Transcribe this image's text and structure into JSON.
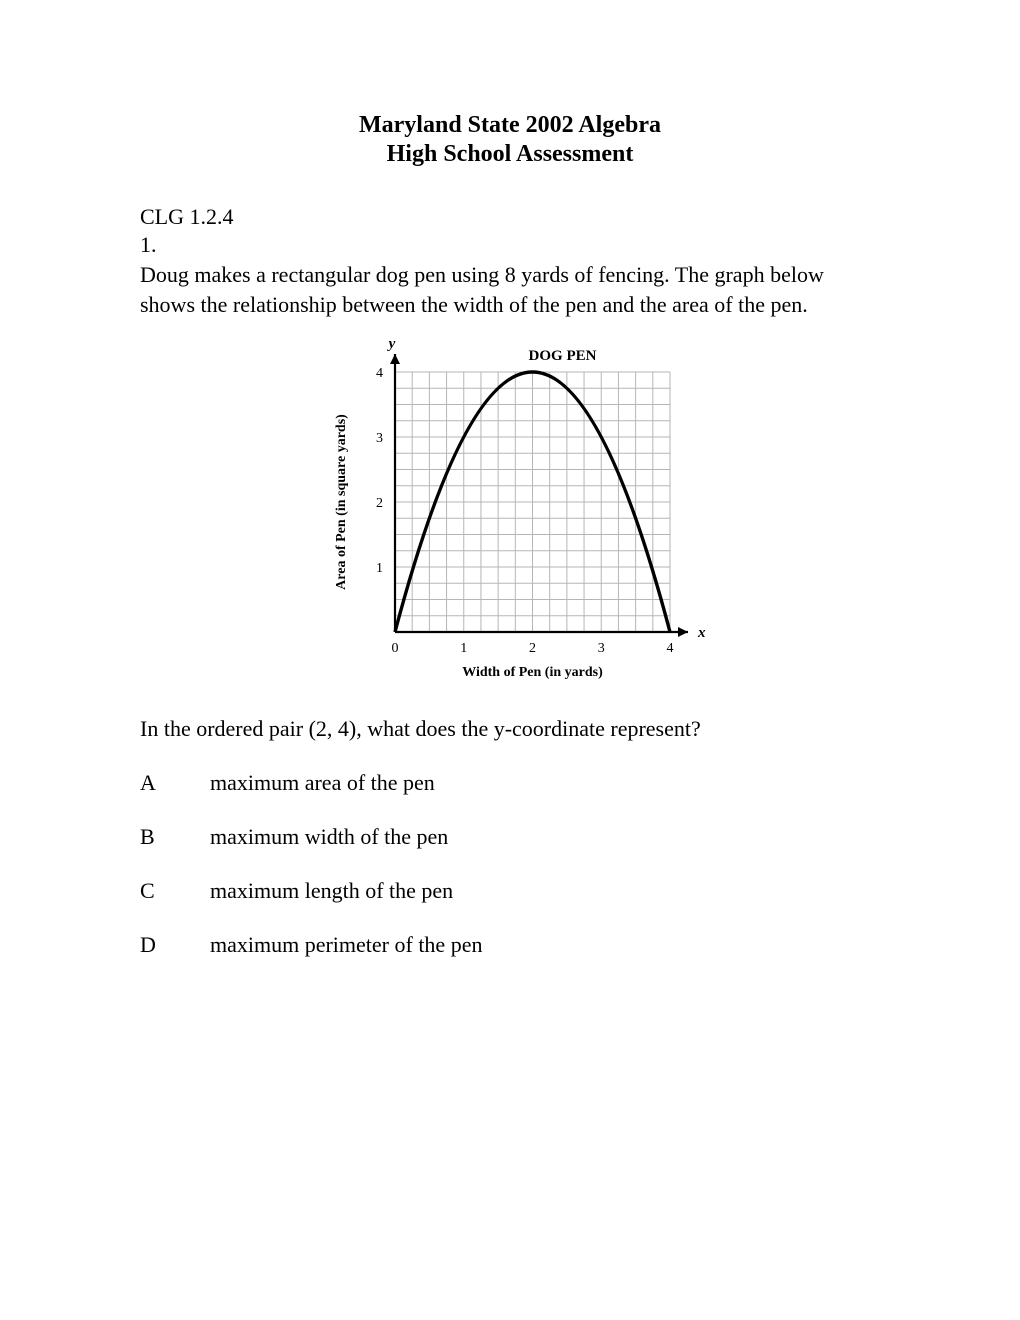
{
  "header": {
    "line1": "Maryland State 2002 Algebra",
    "line2": "High School Assessment"
  },
  "clg": "CLG 1.2.4",
  "question_number": "1.",
  "problem_text": "Doug makes a rectangular dog pen using 8 yards of fencing. The graph below shows the relationship between the width of the pen and the area of the pen.",
  "question_text": "In the ordered pair (2, 4), what does the y-coordinate represent?",
  "choices": [
    {
      "letter": "A",
      "text": "maximum area of the pen"
    },
    {
      "letter": "B",
      "text": "maximum width of the pen"
    },
    {
      "letter": "C",
      "text": "maximum length of the pen"
    },
    {
      "letter": "D",
      "text": "maximum perimeter of the pen"
    }
  ],
  "chart": {
    "type": "line",
    "title": "DOG PEN",
    "title_fontsize": 15,
    "x_label": "Width of Pen (in yards)",
    "y_label": "Area of Pen (in square yards)",
    "axis_label_fontsize": 14,
    "x_axis_var": "x",
    "y_axis_var": "y",
    "xlim": [
      0,
      4
    ],
    "ylim": [
      0,
      4
    ],
    "x_tick_step_minor": 0.25,
    "y_tick_step_minor": 0.25,
    "x_tick_labels": [
      0,
      1,
      2,
      3,
      4
    ],
    "y_tick_labels": [
      1,
      2,
      3,
      4
    ],
    "tick_label_fontsize": 14,
    "grid_color": "#b5b5b5",
    "grid_stroke": 1,
    "axis_color": "#000000",
    "axis_stroke": 2.2,
    "curve_color": "#000000",
    "curve_stroke": 3.4,
    "background_color": "#ffffff",
    "curve_points": [
      {
        "x": 0.0,
        "y": 0.0
      },
      {
        "x": 0.2,
        "y": 0.72
      },
      {
        "x": 0.4,
        "y": 1.28
      },
      {
        "x": 0.6,
        "y": 1.76
      },
      {
        "x": 0.8,
        "y": 2.56
      },
      {
        "x": 1.0,
        "y": 3.0
      },
      {
        "x": 1.2,
        "y": 3.36
      },
      {
        "x": 1.4,
        "y": 3.64
      },
      {
        "x": 1.6,
        "y": 3.84
      },
      {
        "x": 1.8,
        "y": 3.96
      },
      {
        "x": 2.0,
        "y": 4.0
      },
      {
        "x": 2.2,
        "y": 3.96
      },
      {
        "x": 2.4,
        "y": 3.84
      },
      {
        "x": 2.6,
        "y": 3.64
      },
      {
        "x": 2.8,
        "y": 3.36
      },
      {
        "x": 3.0,
        "y": 3.0
      },
      {
        "x": 3.2,
        "y": 2.56
      },
      {
        "x": 3.4,
        "y": 1.76
      },
      {
        "x": 3.6,
        "y": 1.28
      },
      {
        "x": 3.8,
        "y": 0.72
      },
      {
        "x": 4.0,
        "y": 0.0
      }
    ]
  }
}
